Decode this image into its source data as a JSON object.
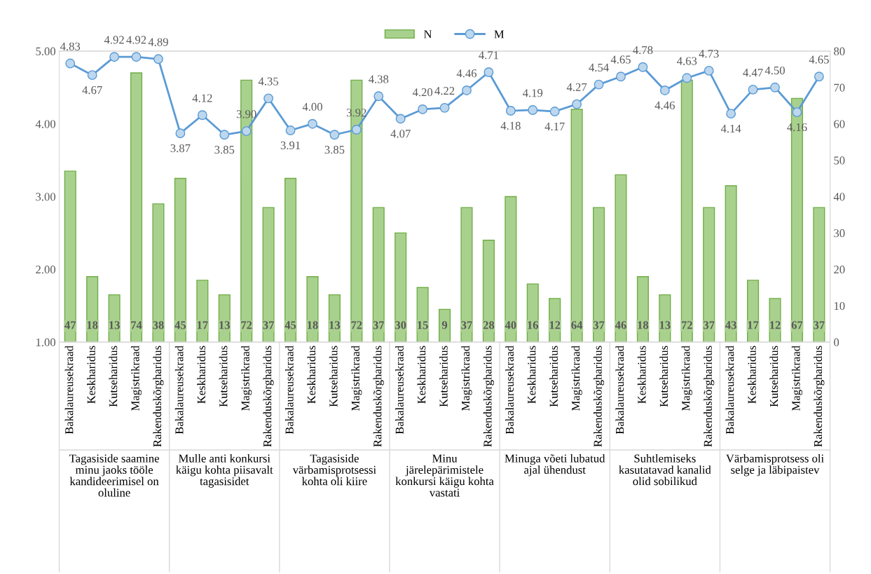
{
  "chart_data": {
    "type": "bar",
    "categories": [
      "Bakalaureusekraad",
      "Keskharidus",
      "Kutseharidus",
      "Magistrikraad",
      "Rakenduskõrgharidus",
      "Bakalaureusekraad",
      "Keskharidus",
      "Kutseharidus",
      "Magistrikraad",
      "Rakenduskõrgharidus",
      "Bakalaureusekraad",
      "Keskharidus",
      "Kutseharidus",
      "Magistrikraad",
      "Rakenduskõrgharidus",
      "Bakalaureusekraad",
      "Keskharidus",
      "Kutseharidus",
      "Magistrikraad",
      "Rakenduskõrgharidus",
      "Bakalaureusekraad",
      "Keskharidus",
      "Kutseharidus",
      "Magistrikraad",
      "Rakenduskõrgharidus",
      "Bakalaureusekraad",
      "Keskharidus",
      "Kutseharidus",
      "Magistrikraad",
      "Rakenduskõrgharidus",
      "Bakalaureusekraad",
      "Keskharidus",
      "Kutseharidus",
      "Magistrikraad",
      "Rakenduskõrgharidus"
    ],
    "annotations": [
      "Tagasiside saamine minu jaoks tööle kandideerimisel on oluline",
      "Mulle anti konkursi käigu kohta piisavalt tagasisidet",
      "Tagasiside värbamisprotsessi kohta oli kiire",
      "Minu järelepärimistele konkursi käigu kohta vastati",
      "Minuga võeti lubatud ajal ühendust",
      "Suhtlemiseks kasutatavad kanalid olid sobilikud",
      "Värbamisprotsess oli selge ja läbipaistev"
    ],
    "series": [
      {
        "name": "N",
        "axis": "y2",
        "color": "#a9d18e",
        "values": [
          47,
          18,
          13,
          74,
          38,
          45,
          17,
          13,
          72,
          37,
          45,
          18,
          13,
          72,
          37,
          30,
          15,
          9,
          37,
          28,
          40,
          16,
          12,
          64,
          37,
          46,
          18,
          13,
          72,
          37,
          43,
          17,
          12,
          67,
          37
        ]
      },
      {
        "name": "M",
        "type": "line",
        "axis": "y",
        "color": "#5b9bd5",
        "marker": "circle",
        "values": [
          4.83,
          4.67,
          4.92,
          4.92,
          4.89,
          3.87,
          4.12,
          3.85,
          3.9,
          4.35,
          3.91,
          4.0,
          3.85,
          3.92,
          4.38,
          4.07,
          4.2,
          4.22,
          4.46,
          4.71,
          4.18,
          4.19,
          4.17,
          4.27,
          4.54,
          4.65,
          4.78,
          4.46,
          4.63,
          4.73,
          4.14,
          4.47,
          4.5,
          4.16,
          4.65
        ],
        "value_labels": [
          "4.83",
          "4.67",
          "4.92",
          "4.92",
          "4.89",
          "3.87",
          "4.12",
          "3.85",
          "3.90",
          "4.35",
          "3.91",
          "4.00",
          "3.85",
          "3.92",
          "4.38",
          "4.07",
          "4.20",
          "4.22",
          "4.46",
          "4.71",
          "4.18",
          "4.19",
          "4.17",
          "4.27",
          "4.54",
          "4.65",
          "4.78",
          "4.46",
          "4.63",
          "4.73",
          "4.14",
          "4.47",
          "4.50",
          "4.16",
          "4.65"
        ]
      }
    ],
    "ylim": [
      1,
      5
    ],
    "yticks": [
      {
        "value": 1,
        "label": "1.00"
      },
      {
        "value": 2,
        "label": "2.00"
      },
      {
        "value": 3,
        "label": "3.00"
      },
      {
        "value": 4,
        "label": "4.00"
      },
      {
        "value": 5,
        "label": "5.00"
      }
    ],
    "y2lim": [
      0,
      80
    ],
    "y2ticks": [
      0,
      10,
      20,
      30,
      40,
      50,
      60,
      70,
      80
    ],
    "data_labels": true,
    "grid": false,
    "legend": "top"
  }
}
